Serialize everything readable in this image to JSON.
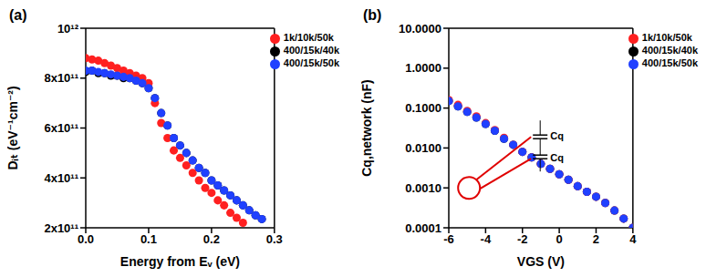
{
  "chart_data": [
    {
      "type": "scatter",
      "title": "(a)",
      "x_label": "Energy from Eᵥ (eV)",
      "y_label": "Dᵢₜ (eV⁻¹cm⁻²)",
      "xlim": [
        0,
        0.3
      ],
      "xticks": [
        {
          "value": 0,
          "label": "0.0"
        },
        {
          "value": 0.1,
          "label": "0.1"
        },
        {
          "value": 0.2,
          "label": "0.2"
        },
        {
          "value": 0.3,
          "label": "0.3"
        }
      ],
      "ylim": [
        200000000000.0,
        1000000000000.0
      ],
      "yticks": [
        {
          "value": 200000000000.0,
          "label": "2x10¹¹"
        },
        {
          "value": 400000000000.0,
          "label": "4x10¹¹"
        },
        {
          "value": 600000000000.0,
          "label": "6x10¹¹"
        },
        {
          "value": 800000000000.0,
          "label": "8x10¹¹"
        },
        {
          "value": 1000000000000.0,
          "label": "10¹²"
        }
      ],
      "grid": false,
      "legend": "upper right",
      "series": [
        {
          "name": "400/15k/40k",
          "color": "#000000",
          "marker": "circle",
          "x": [
            0,
            0.01,
            0.02,
            0.03,
            0.04,
            0.05,
            0.06,
            0.07,
            0.08,
            0.09,
            0.1,
            0.11,
            0.12,
            0.13,
            0.14,
            0.15,
            0.16,
            0.17,
            0.18,
            0.19,
            0.2,
            0.21,
            0.22,
            0.23,
            0.24,
            0.25,
            0.26,
            0.27,
            0.28
          ],
          "values": [
            825000000000.0,
            830000000000.0,
            820000000000.0,
            820000000000.0,
            810000000000.0,
            810000000000.0,
            800000000000.0,
            800000000000.0,
            790000000000.0,
            780000000000.0,
            760000000000.0,
            720000000000.0,
            660000000000.0,
            610000000000.0,
            560000000000.0,
            530000000000.0,
            500000000000.0,
            470000000000.0,
            440000000000.0,
            420000000000.0,
            390000000000.0,
            370000000000.0,
            350000000000.0,
            330000000000.0,
            310000000000.0,
            290000000000.0,
            270000000000.0,
            250000000000.0,
            235000000000.0
          ]
        },
        {
          "name": "1k/10k/50k",
          "color": "#ff2020",
          "marker": "circle",
          "x": [
            0,
            0.01,
            0.02,
            0.03,
            0.04,
            0.05,
            0.06,
            0.07,
            0.08,
            0.09,
            0.1,
            0.11,
            0.12,
            0.13,
            0.14,
            0.15,
            0.16,
            0.17,
            0.18,
            0.19,
            0.2,
            0.21,
            0.22,
            0.23,
            0.24,
            0.25
          ],
          "values": [
            880000000000.0,
            875000000000.0,
            870000000000.0,
            860000000000.0,
            850000000000.0,
            840000000000.0,
            830000000000.0,
            820000000000.0,
            810000000000.0,
            800000000000.0,
            780000000000.0,
            700000000000.0,
            620000000000.0,
            560000000000.0,
            510000000000.0,
            480000000000.0,
            450000000000.0,
            420000000000.0,
            390000000000.0,
            360000000000.0,
            340000000000.0,
            310000000000.0,
            290000000000.0,
            260000000000.0,
            240000000000.0,
            220000000000.0
          ]
        },
        {
          "name": "400/15k/50k",
          "color": "#2040ff",
          "marker": "circle",
          "x": [
            0,
            0.01,
            0.02,
            0.03,
            0.04,
            0.05,
            0.06,
            0.07,
            0.08,
            0.09,
            0.1,
            0.11,
            0.12,
            0.13,
            0.14,
            0.15,
            0.16,
            0.17,
            0.18,
            0.19,
            0.2,
            0.21,
            0.22,
            0.23,
            0.24,
            0.25,
            0.26,
            0.27,
            0.28
          ],
          "values": [
            830000000000.0,
            830000000000.0,
            825000000000.0,
            820000000000.0,
            815000000000.0,
            810000000000.0,
            805000000000.0,
            800000000000.0,
            790000000000.0,
            780000000000.0,
            760000000000.0,
            720000000000.0,
            660000000000.0,
            610000000000.0,
            560000000000.0,
            530000000000.0,
            500000000000.0,
            470000000000.0,
            440000000000.0,
            420000000000.0,
            390000000000.0,
            370000000000.0,
            350000000000.0,
            330000000000.0,
            310000000000.0,
            290000000000.0,
            270000000000.0,
            250000000000.0,
            235000000000.0
          ]
        }
      ]
    },
    {
      "type": "scatter",
      "title": "(b)",
      "x_label": "VGS (V)",
      "y_label": "Cq,network (nF)",
      "log": "y",
      "xlim": [
        -6,
        4
      ],
      "xticks": [
        -6,
        -4,
        -2,
        0,
        2,
        4
      ],
      "ylim": [
        0.0001,
        10
      ],
      "yticks": [
        0.0001,
        {
          "value": 0.001,
          "label": "0.0010"
        },
        {
          "value": 0.01,
          "label": "0.0100"
        },
        {
          "value": 0.1,
          "label": "0.1000"
        },
        {
          "value": 1,
          "label": "1.0000"
        },
        {
          "value": 10,
          "label": "10.0000"
        }
      ],
      "grid": false,
      "legend": "upper right",
      "annotations": [
        {
          "x": -4.9,
          "y": 0.001,
          "labels": [
            "Cq",
            "Cq"
          ]
        }
      ],
      "series": [
        {
          "name": "400/15k/40k",
          "color": "#000000",
          "marker": "circle",
          "x": [
            -6,
            -5.5,
            -5,
            -4.5,
            -4,
            -3.5,
            -3,
            -2.5,
            -2,
            -1.5,
            -1,
            -0.5,
            0,
            0.5,
            1,
            1.5,
            2,
            2.5,
            3,
            3.5,
            4
          ],
          "values": [
            0.15,
            0.11,
            0.08,
            0.058,
            0.04,
            0.027,
            0.017,
            0.012,
            0.008,
            0.0058,
            0.004,
            0.003,
            0.0022,
            0.0016,
            0.0011,
            0.0008,
            0.0006,
            0.00042,
            0.00027,
            0.00017,
            0.0001
          ]
        },
        {
          "name": "1k/10k/50k",
          "color": "#ff2020",
          "marker": "circle",
          "x": [
            -6,
            -5.5,
            -5,
            -4.5,
            -4,
            -3.5,
            -3,
            -2.5,
            -2,
            -1.5,
            -1,
            -0.5,
            0,
            0.5,
            1,
            1.5,
            2,
            2.5,
            3,
            3.5,
            4
          ],
          "values": [
            0.16,
            0.12,
            0.085,
            0.062,
            0.042,
            0.028,
            0.018,
            0.012,
            0.008,
            0.0058,
            0.004,
            0.003,
            0.0022,
            0.0016,
            0.0011,
            0.0008,
            0.0006,
            0.00042,
            0.00027,
            0.00017,
            0.0001
          ]
        },
        {
          "name": "400/15k/50k",
          "color": "#2040ff",
          "marker": "circle",
          "x": [
            -6,
            -5.5,
            -5,
            -4.5,
            -4,
            -3.5,
            -3,
            -2.5,
            -2,
            -1.5,
            -1,
            -0.5,
            0,
            0.5,
            1,
            1.5,
            2,
            2.5,
            3,
            3.5,
            4
          ],
          "values": [
            0.15,
            0.11,
            0.08,
            0.058,
            0.04,
            0.027,
            0.017,
            0.012,
            0.008,
            0.0058,
            0.004,
            0.003,
            0.0022,
            0.0016,
            0.0011,
            0.0008,
            0.0006,
            0.00042,
            0.00027,
            0.00017,
            0.0001
          ]
        }
      ]
    }
  ]
}
